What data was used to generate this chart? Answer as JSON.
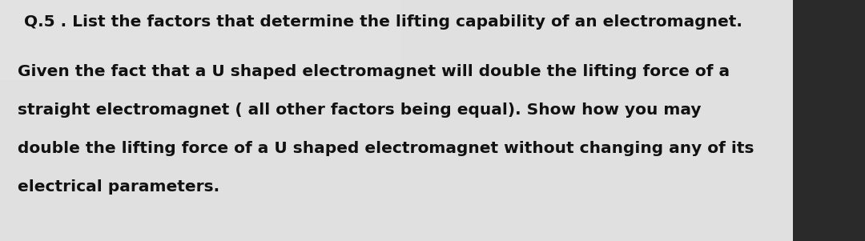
{
  "bg_left_color": "#c8c8c8",
  "bg_right_color": "#2a2a2a",
  "paper_color": "#e0e0e0",
  "text_color": "#111111",
  "line1": "Q.5 . List the factors that determine the lifting capability of an electromagnet.",
  "line2": "Given the fact that a U shaped electromagnet will double the lifting force of a",
  "line3": "straight electromagnet ( all other factors being equal). Show how you may",
  "line4": "double the lifting force of a U shaped electromagnet without changing any of its",
  "line5": "electrical parameters.",
  "line1_fontsize": 14.5,
  "body_fontsize": 14.5,
  "figwidth": 10.8,
  "figheight": 3.01,
  "dpi": 100
}
